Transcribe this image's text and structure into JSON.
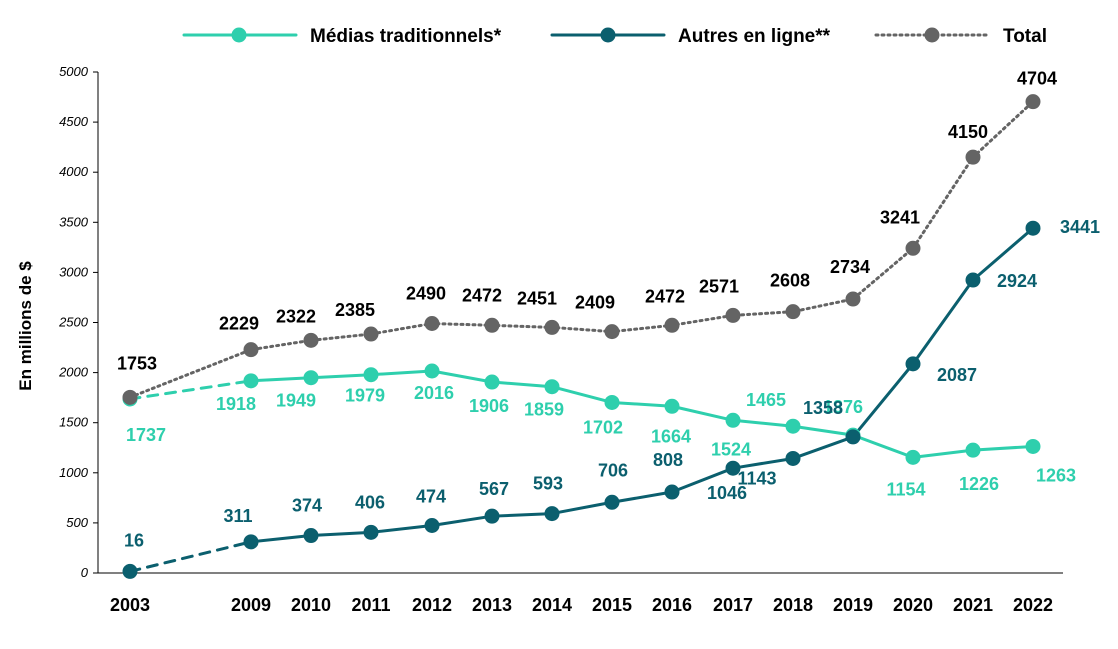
{
  "chart_data": {
    "type": "line",
    "ylabel": "En millions de $",
    "xlabel": "",
    "ylim": [
      0,
      5000
    ],
    "y_ticks": [
      0,
      500,
      1000,
      1500,
      2000,
      2500,
      3000,
      3500,
      4000,
      4500,
      5000
    ],
    "grid": false,
    "legend_position": "top",
    "categories": [
      "2003",
      "2009",
      "2010",
      "2011",
      "2012",
      "2013",
      "2014",
      "2015",
      "2016",
      "2017",
      "2018",
      "2019",
      "2020",
      "2021",
      "2022"
    ],
    "series": [
      {
        "name": "Médias traditionnels*",
        "color": "#2ecfad",
        "style": "solid",
        "values": [
          1737,
          1918,
          1949,
          1979,
          2016,
          1906,
          1859,
          1702,
          1664,
          1524,
          1465,
          1376,
          1154,
          1226,
          1263
        ]
      },
      {
        "name": "Autres en ligne**",
        "color": "#0b5f6e",
        "style": "solid",
        "values": [
          16,
          311,
          374,
          406,
          474,
          567,
          593,
          706,
          808,
          1046,
          1143,
          1358,
          2087,
          2924,
          3441
        ]
      },
      {
        "name": "Total",
        "color": "#646464",
        "style": "dotted",
        "values": [
          1753,
          2229,
          2322,
          2385,
          2490,
          2472,
          2451,
          2409,
          2472,
          2571,
          2608,
          2734,
          3241,
          4150,
          4704
        ]
      }
    ]
  }
}
